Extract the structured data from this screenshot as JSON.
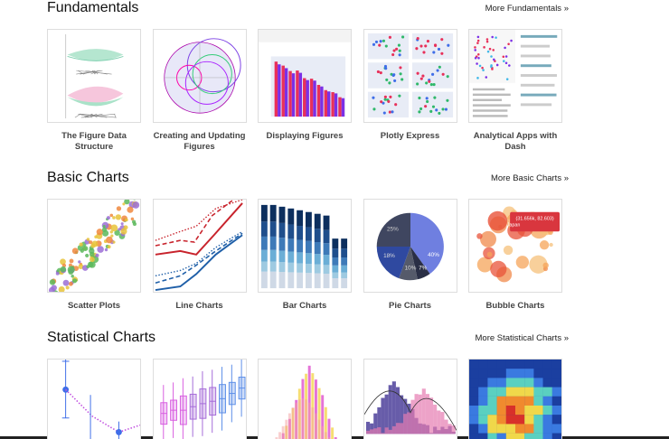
{
  "sections": [
    {
      "title": "Fundamentals",
      "more": "More Fundamentals »",
      "items": [
        {
          "label": "The Figure Data Structure"
        },
        {
          "label": "Creating and Updating Figures"
        },
        {
          "label": "Displaying Figures"
        },
        {
          "label": "Plotly Express"
        },
        {
          "label": "Analytical Apps with Dash"
        }
      ]
    },
    {
      "title": "Basic Charts",
      "more": "More Basic Charts »",
      "items": [
        {
          "label": "Scatter Plots"
        },
        {
          "label": "Line Charts"
        },
        {
          "label": "Bar Charts"
        },
        {
          "label": "Pie Charts",
          "thumb_labels": [
            "40%",
            "25%",
            "18%",
            "10%",
            "7%"
          ]
        },
        {
          "label": "Bubble Charts",
          "thumb_labels": [
            "(31.656k, 82.603)",
            "Japan"
          ]
        }
      ]
    },
    {
      "title": "Statistical Charts",
      "more": "More Statistical Charts »",
      "items": [
        {
          "label": ""
        },
        {
          "label": ""
        },
        {
          "label": ""
        },
        {
          "label": ""
        },
        {
          "label": ""
        }
      ]
    }
  ]
}
